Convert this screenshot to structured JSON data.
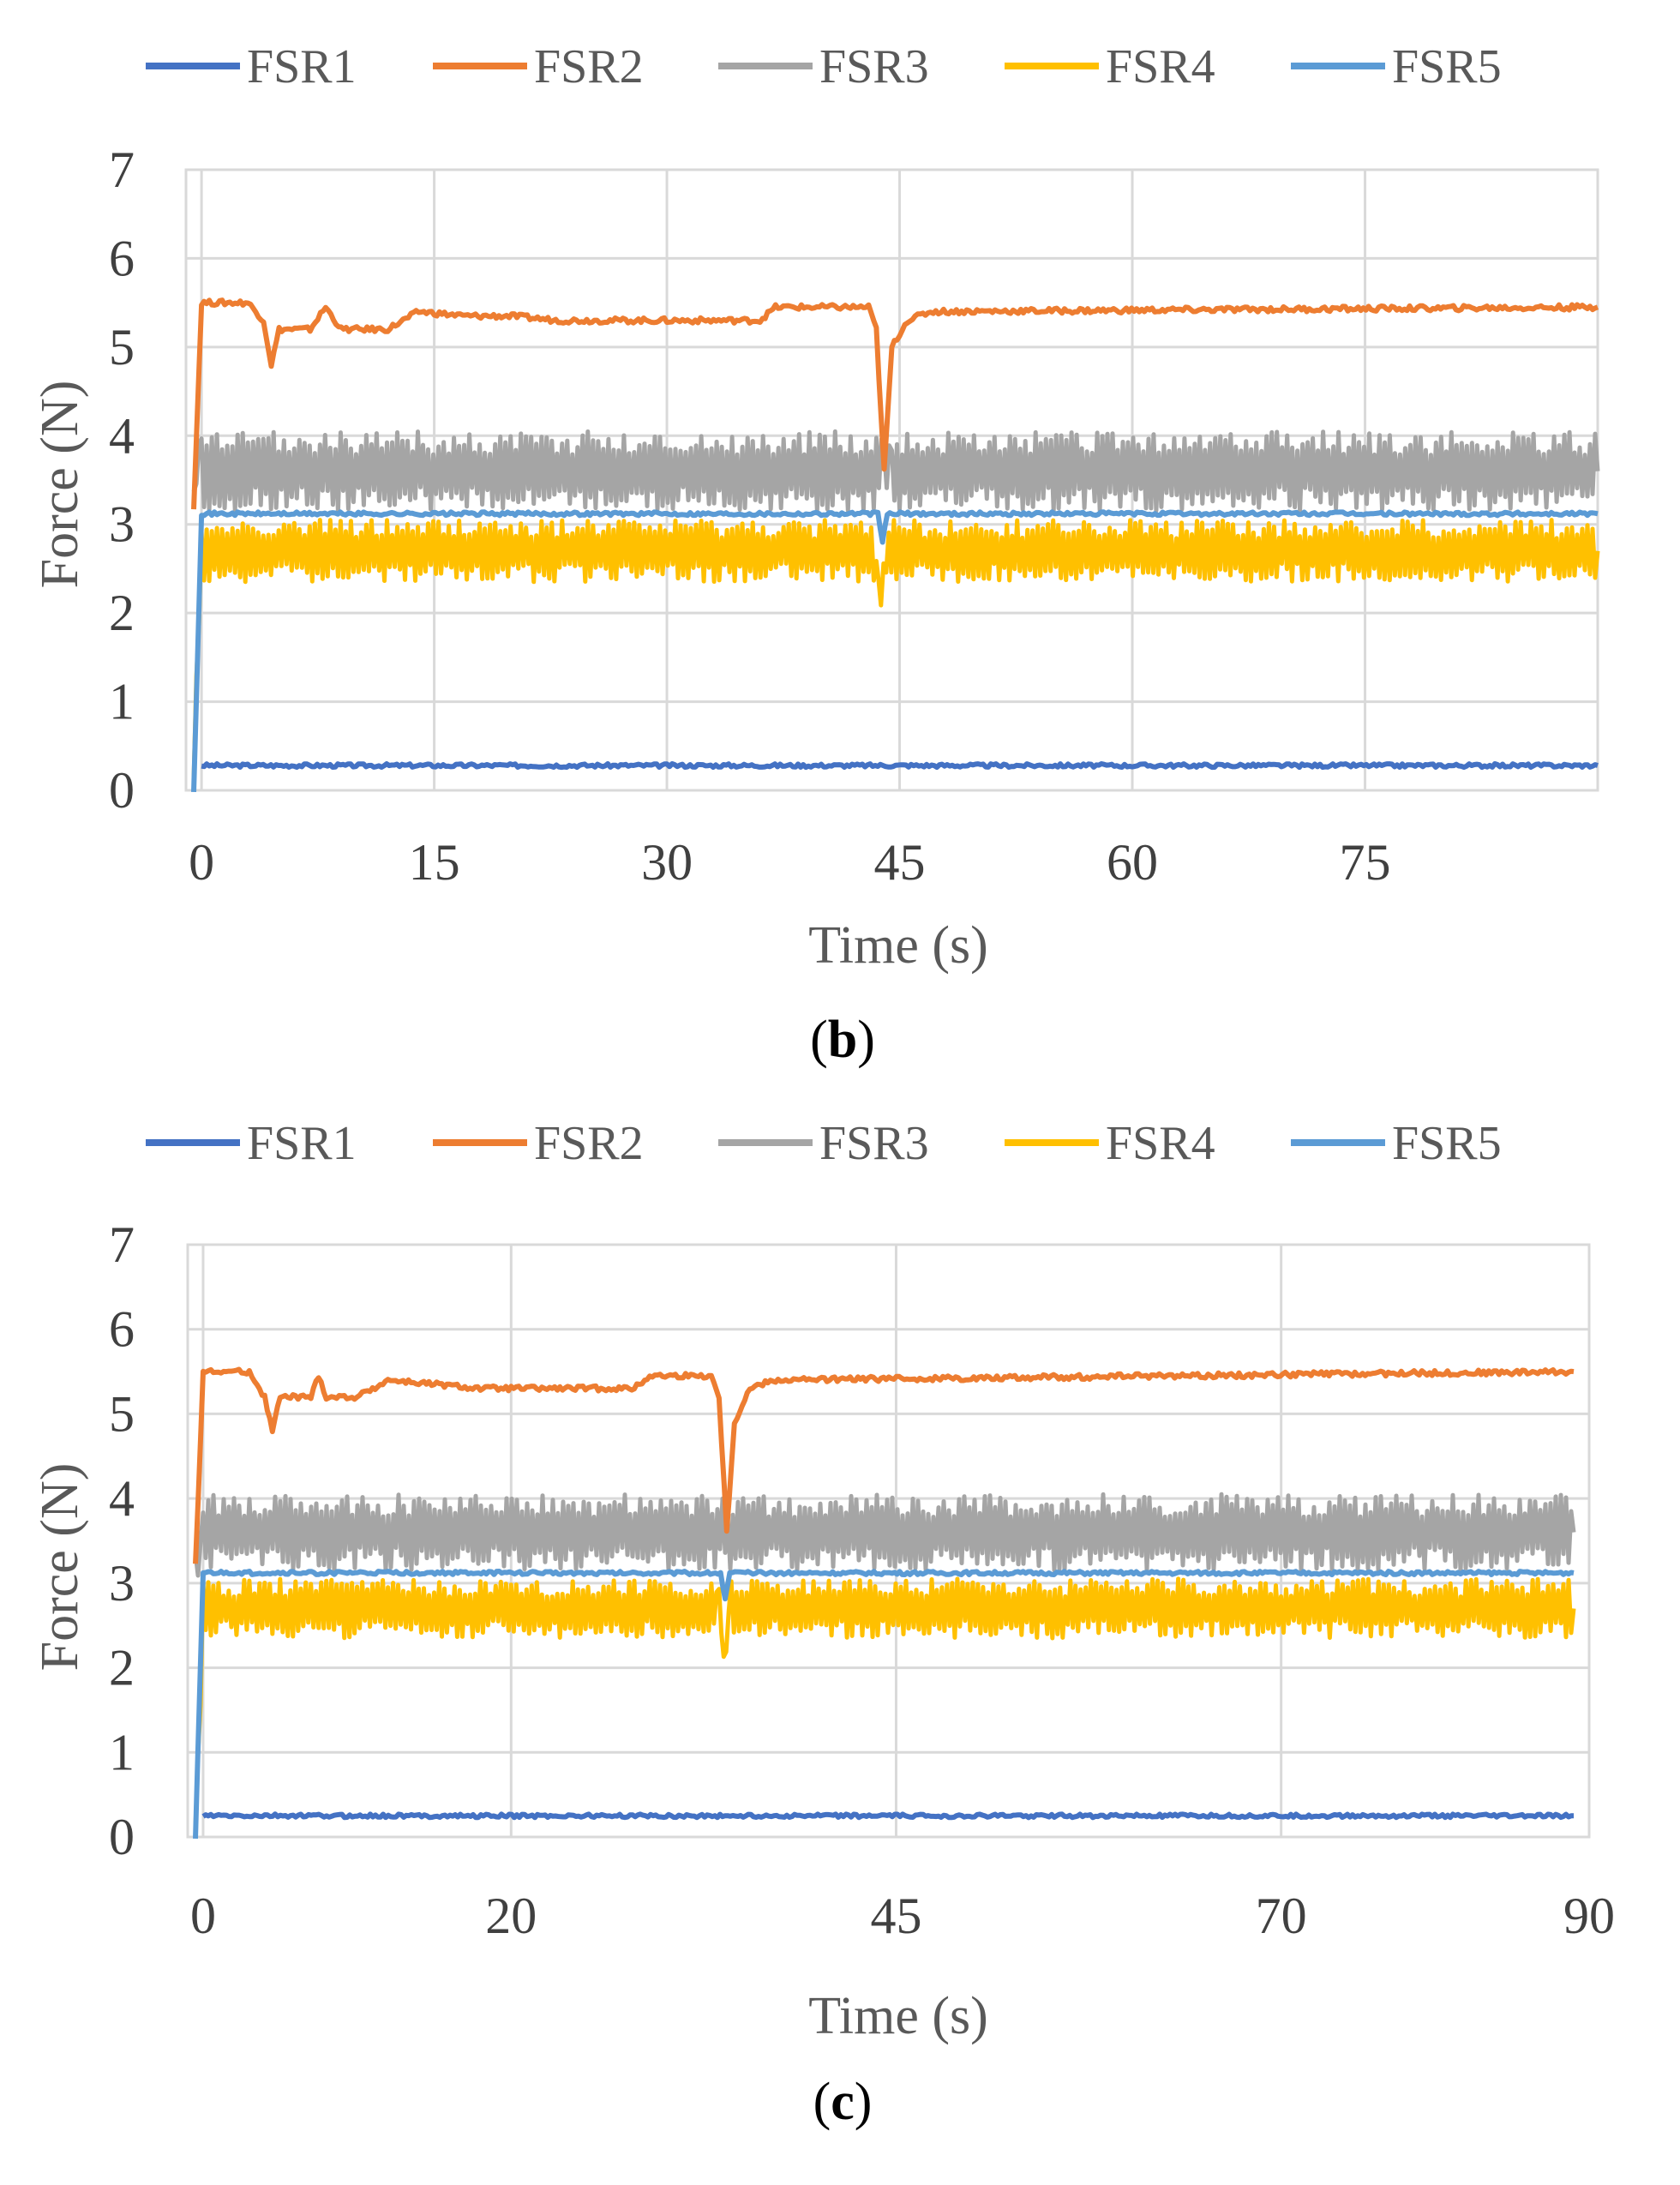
{
  "chart_data": [
    {
      "type": "line",
      "panel_label": "b",
      "xlabel": "Time (s)",
      "ylabel": "Force (N)",
      "xlim": [
        -1,
        90
      ],
      "ylim": [
        0,
        7
      ],
      "x_ticks": [
        0,
        15,
        30,
        45,
        60,
        75
      ],
      "y_ticks": [
        0,
        1,
        2,
        3,
        4,
        5,
        6,
        7
      ],
      "grid": true,
      "legend_position": "top",
      "series": [
        {
          "name": "FSR1",
          "color": "#4472C4",
          "base": 0.28,
          "noise": 0.02,
          "points": [
            [
              0,
              0.28
            ],
            [
              90,
              0.28
            ]
          ]
        },
        {
          "name": "FSR2",
          "color": "#ED7D31",
          "base": 5.4,
          "noise": 0.03,
          "points": [
            [
              -0.5,
              3.2
            ],
            [
              0,
              5.5
            ],
            [
              3,
              5.5
            ],
            [
              4,
              5.3
            ],
            [
              4.5,
              4.8
            ],
            [
              5,
              5.2
            ],
            [
              7,
              5.2
            ],
            [
              8,
              5.45
            ],
            [
              9,
              5.2
            ],
            [
              12,
              5.2
            ],
            [
              14,
              5.4
            ],
            [
              17,
              5.35
            ],
            [
              20,
              5.35
            ],
            [
              23,
              5.3
            ],
            [
              36,
              5.3
            ],
            [
              37,
              5.45
            ],
            [
              43,
              5.45
            ],
            [
              43.5,
              5.2
            ],
            [
              44,
              3.6
            ],
            [
              44.5,
              5.0
            ],
            [
              45.5,
              5.3
            ],
            [
              47,
              5.4
            ],
            [
              90,
              5.45
            ]
          ]
        },
        {
          "name": "FSR3",
          "color": "#A5A5A5",
          "base": 3.6,
          "noise": 0.45,
          "points": [
            [
              -0.5,
              3.2
            ],
            [
              0,
              3.6
            ],
            [
              43.5,
              3.6
            ],
            [
              44,
              3.6
            ],
            [
              44.5,
              3.6
            ],
            [
              90,
              3.6
            ]
          ]
        },
        {
          "name": "FSR4",
          "color": "#FFC000",
          "base": 2.7,
          "noise": 0.35,
          "points": [
            [
              -0.5,
              0.2
            ],
            [
              0,
              2.7
            ],
            [
              43.5,
              2.7
            ],
            [
              43.8,
              2.1
            ],
            [
              44.3,
              2.7
            ],
            [
              90,
              2.7
            ]
          ]
        },
        {
          "name": "FSR5",
          "color": "#5B9BD5",
          "base": 3.12,
          "noise": 0.02,
          "points": [
            [
              -0.5,
              0
            ],
            [
              0,
              3.12
            ],
            [
              43.6,
              3.12
            ],
            [
              43.9,
              2.8
            ],
            [
              44.2,
              3.12
            ],
            [
              90,
              3.12
            ]
          ]
        }
      ]
    },
    {
      "type": "line",
      "panel_label": "c",
      "xlabel": "Time (s)",
      "ylabel": "Force (N)",
      "xlim": [
        -1,
        90
      ],
      "ylim": [
        0,
        7
      ],
      "x_ticks": [
        0,
        20,
        45,
        70,
        90
      ],
      "y_ticks": [
        0,
        1,
        2,
        3,
        4,
        5,
        6,
        7
      ],
      "grid": true,
      "legend_position": "top",
      "series": [
        {
          "name": "FSR1",
          "color": "#4472C4",
          "base": 0.25,
          "noise": 0.02,
          "points": [
            [
              0,
              0.25
            ],
            [
              89,
              0.25
            ]
          ]
        },
        {
          "name": "FSR2",
          "color": "#ED7D31",
          "base": 5.4,
          "noise": 0.03,
          "points": [
            [
              -0.5,
              3.2
            ],
            [
              0,
              5.5
            ],
            [
              3,
              5.5
            ],
            [
              4,
              5.2
            ],
            [
              4.5,
              4.8
            ],
            [
              5,
              5.2
            ],
            [
              7,
              5.2
            ],
            [
              7.5,
              5.45
            ],
            [
              8,
              5.2
            ],
            [
              10,
              5.2
            ],
            [
              12,
              5.4
            ],
            [
              15,
              5.35
            ],
            [
              18,
              5.3
            ],
            [
              28,
              5.3
            ],
            [
              29,
              5.45
            ],
            [
              33,
              5.45
            ],
            [
              33.5,
              5.2
            ],
            [
              34,
              3.6
            ],
            [
              34.5,
              4.9
            ],
            [
              35.5,
              5.3
            ],
            [
              37,
              5.4
            ],
            [
              89,
              5.5
            ]
          ]
        },
        {
          "name": "FSR3",
          "color": "#A5A5A5",
          "base": 3.6,
          "noise": 0.45,
          "points": [
            [
              -0.5,
              3.2
            ],
            [
              0,
              3.6
            ],
            [
              89,
              3.6
            ]
          ]
        },
        {
          "name": "FSR4",
          "color": "#FFC000",
          "base": 2.7,
          "noise": 0.35,
          "points": [
            [
              -0.5,
              0.2
            ],
            [
              0,
              2.7
            ],
            [
              33.5,
              2.7
            ],
            [
              33.8,
              2.1
            ],
            [
              34.3,
              2.7
            ],
            [
              89,
              2.7
            ]
          ]
        },
        {
          "name": "FSR5",
          "color": "#5B9BD5",
          "base": 3.12,
          "noise": 0.02,
          "points": [
            [
              -0.5,
              0
            ],
            [
              0,
              3.12
            ],
            [
              33.6,
              3.12
            ],
            [
              33.9,
              2.8
            ],
            [
              34.2,
              3.12
            ],
            [
              89,
              3.12
            ]
          ]
        }
      ]
    }
  ]
}
